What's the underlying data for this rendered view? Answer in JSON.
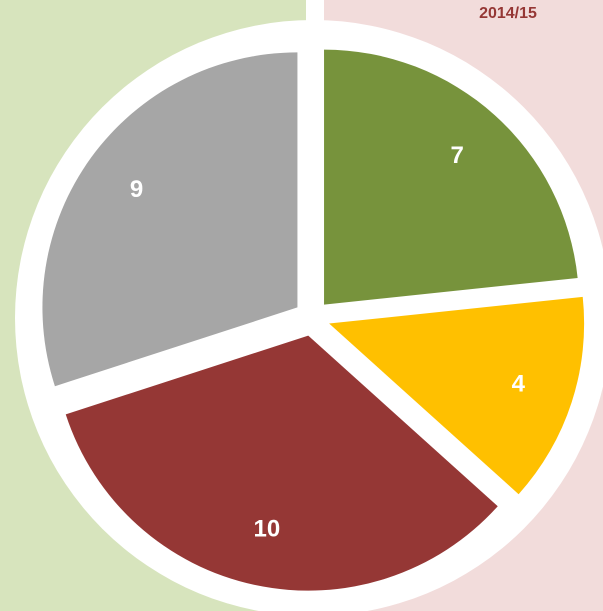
{
  "chart_data": {
    "type": "pie",
    "title": "2014/15",
    "categories": [
      null,
      null,
      null,
      null
    ],
    "values": [
      7,
      4,
      10,
      9
    ],
    "colors": [
      "#77933c",
      "#ffc000",
      "#953735",
      "#a6a6a6"
    ],
    "start_angle": 0,
    "direction": "clockwise"
  }
}
